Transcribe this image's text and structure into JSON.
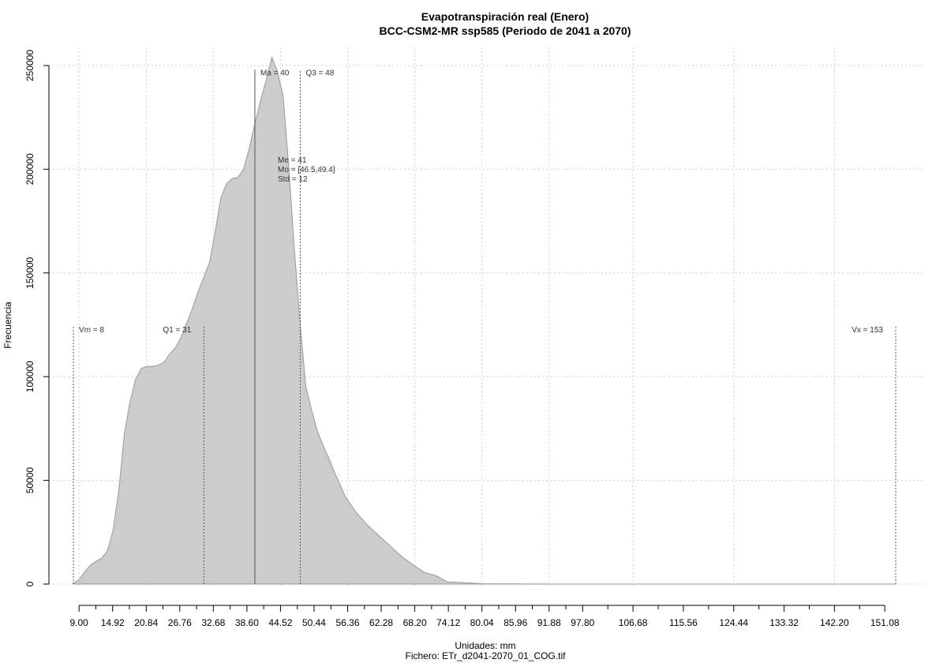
{
  "chart_data": {
    "type": "area",
    "title": "Evapotranspiración real (Enero)",
    "subtitle": "BCC-CSM2-MR ssp585 (Periodo de 2041 a 2070)",
    "xlabel": "Unidades: mm",
    "caption": "Fichero: ETr_d2041-2070_01_COG.tif",
    "ylabel": "Frecuencia",
    "xlim": [
      8,
      153
    ],
    "ylim": [
      0,
      250000
    ],
    "x_ticks": [
      "9.00",
      "14.92",
      "20.84",
      "26.76",
      "32.68",
      "38.60",
      "44.52",
      "50.44",
      "56.36",
      "62.28",
      "68.20",
      "74.12",
      "80.04",
      "85.96",
      "91.88",
      "97.80",
      "106.68",
      "115.56",
      "124.44",
      "133.32",
      "142.20",
      "151.08"
    ],
    "y_ticks": [
      "0",
      "50000",
      "100000",
      "150000",
      "200000",
      "250000"
    ],
    "series": [
      {
        "x": [
          8,
          9,
          10,
          11,
          12,
          13,
          14,
          15,
          16,
          17,
          18,
          19,
          20,
          21,
          22,
          23,
          24,
          25,
          26,
          27,
          28,
          29,
          30,
          31,
          32,
          33,
          34,
          35,
          36,
          37,
          38,
          39,
          40,
          41,
          42,
          43,
          44,
          45,
          46,
          47,
          48,
          49,
          50,
          51,
          52,
          53,
          54,
          55,
          56,
          57,
          58,
          59,
          60,
          62,
          64,
          66,
          68,
          70,
          72,
          74,
          76,
          78,
          80,
          82,
          85,
          90,
          95,
          100,
          110,
          120,
          130,
          140,
          150,
          153
        ],
        "y": [
          500,
          2000,
          6000,
          9000,
          11000,
          12500,
          16000,
          26000,
          45000,
          73000,
          88000,
          99000,
          104000,
          105000,
          105000,
          105500,
          107000,
          111000,
          114000,
          119000,
          126000,
          133000,
          141000,
          148000,
          155000,
          170000,
          186000,
          193000,
          195500,
          196000,
          200000,
          210000,
          222000,
          233000,
          243000,
          254000,
          247000,
          235000,
          200000,
          160000,
          125000,
          95000,
          84000,
          74000,
          67000,
          61000,
          54000,
          48000,
          42000,
          38000,
          34000,
          31000,
          28000,
          23000,
          18000,
          13000,
          9000,
          5500,
          4000,
          1000,
          800,
          500,
          200,
          100,
          80,
          30,
          0,
          0,
          0,
          0,
          0,
          0,
          0,
          0
        ]
      }
    ],
    "grid": true,
    "legend": "none",
    "colors": {
      "fill": "#cccccc",
      "stroke": "#999999"
    },
    "markers": [
      {
        "label": "Vm = 8",
        "x": 8,
        "ymax": 124000,
        "style": "dotted",
        "text_pos": "right"
      },
      {
        "label": "Q1 = 31",
        "x": 31,
        "ymax": 124000,
        "style": "dashed",
        "text_pos": "left"
      },
      {
        "label": "Ma = 40",
        "x": 40,
        "ymax": 248000,
        "style": "solid",
        "text_pos": "right"
      },
      {
        "label": "Q3 = 48",
        "x": 48,
        "ymax": 248000,
        "style": "dashed",
        "text_pos": "right"
      },
      {
        "label": "Vx = 153",
        "x": 153,
        "ymax": 124000,
        "style": "dotted",
        "text_pos": "left"
      }
    ],
    "stats": [
      "Me = 41",
      "Mo = [46.5,49.4]",
      "Std = 12"
    ]
  }
}
